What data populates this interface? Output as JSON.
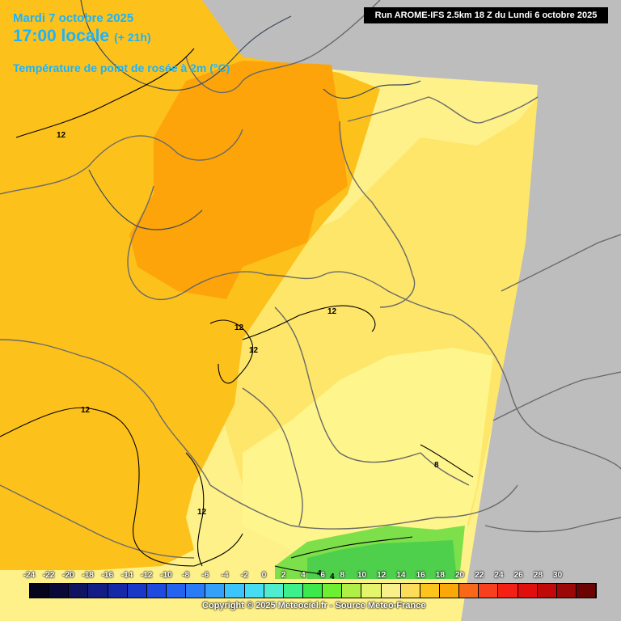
{
  "header": {
    "date": "Mardi 7 octobre 2025",
    "time": "17:00 locale",
    "offset": "(+ 21h)",
    "variable": "Température de point de rosée à 2m (°C)",
    "run": "Run AROME-IFS 2.5km 18 Z du Lundi 6 octobre 2025"
  },
  "legend": {
    "ticks": [
      "-24",
      "-22",
      "-20",
      "-18",
      "-16",
      "-14",
      "-12",
      "-10",
      "-8",
      "-6",
      "-4",
      "-2",
      "0",
      "2",
      "4",
      "6",
      "8",
      "10",
      "12",
      "14",
      "16",
      "18",
      "20",
      "22",
      "24",
      "26",
      "28",
      "30"
    ],
    "colors": [
      "#04041c",
      "#0a0a38",
      "#101460",
      "#121e86",
      "#1428a8",
      "#1838c8",
      "#1e4ae0",
      "#2462f0",
      "#2a7cf6",
      "#34a0fa",
      "#3cc4fc",
      "#46dcf4",
      "#50ecd0",
      "#3ef08c",
      "#3ce84c",
      "#6ef032",
      "#b0f046",
      "#e4f46c",
      "#f8f08a",
      "#fcdc5a",
      "#fcc41c",
      "#fca80a",
      "#f86818",
      "#f8401e",
      "#f42014",
      "#e00e0c",
      "#c00a0a",
      "#9a0808",
      "#6c0404"
    ]
  },
  "map": {
    "contour_labels": [
      "12",
      "12",
      "12",
      "12",
      "12",
      "12",
      "8",
      "4",
      "4"
    ]
  },
  "footer": {
    "copyright": "Copyright © 2025 Meteociel.fr - Source Meteo-France"
  }
}
